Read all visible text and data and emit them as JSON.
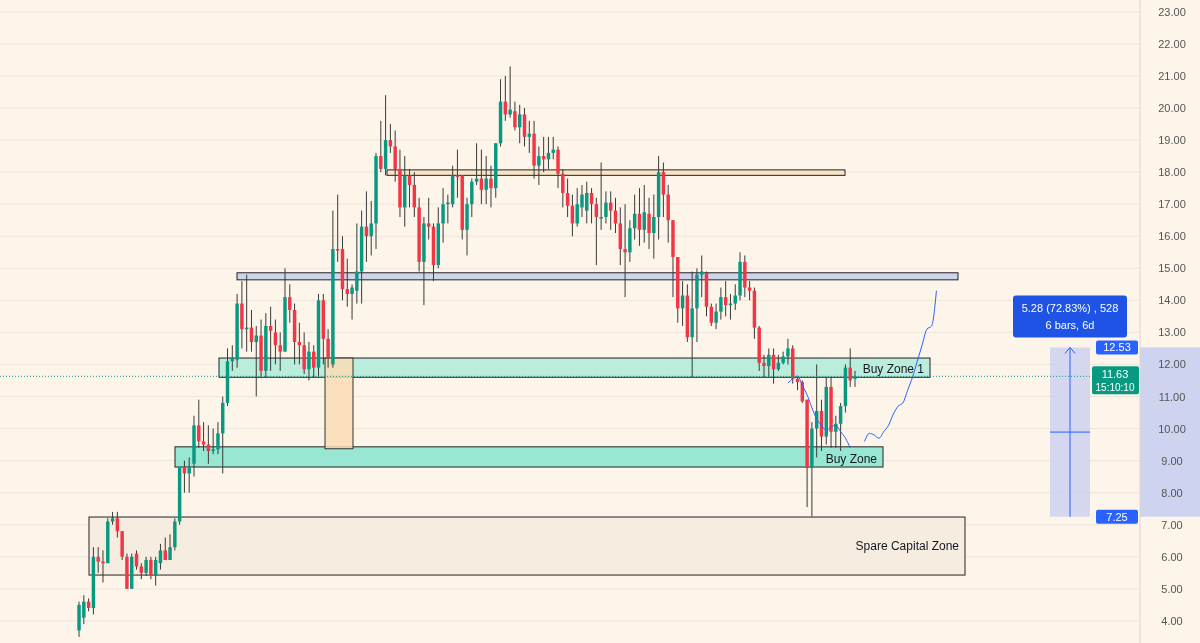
{
  "chart_data": {
    "type": "candlestick",
    "categories": [
      null,
      null,
      null,
      null,
      null,
      null,
      null,
      null,
      null,
      null,
      null,
      null,
      null,
      null,
      null,
      null,
      null,
      null,
      null,
      null,
      null,
      null,
      null,
      null,
      null,
      null,
      null,
      null,
      null,
      null,
      null,
      null,
      null,
      null,
      null,
      null,
      null,
      null,
      null,
      null,
      null,
      null,
      null,
      null,
      null,
      null,
      null,
      null,
      null,
      null,
      null,
      null,
      null,
      null,
      null,
      null,
      null,
      null,
      null,
      null,
      null,
      null,
      null,
      null,
      null,
      null,
      null,
      null,
      null,
      null,
      null,
      null,
      null,
      null,
      null,
      null,
      null,
      null,
      null,
      null,
      null,
      null,
      null,
      null,
      null,
      null,
      null,
      null,
      null,
      null,
      null,
      null,
      null,
      null,
      null,
      null,
      null,
      null,
      null,
      null,
      null,
      null,
      null,
      null,
      null,
      null,
      null,
      null,
      null,
      null,
      null,
      null,
      null,
      null,
      null,
      null,
      null,
      null,
      null,
      null,
      null,
      null,
      null,
      null,
      null,
      null,
      null,
      null,
      null,
      null,
      null,
      null,
      null,
      null,
      null,
      null,
      null,
      null,
      null,
      null,
      null,
      null,
      null,
      null,
      null,
      null,
      null,
      null,
      null,
      null,
      null,
      null,
      null,
      null,
      null,
      null,
      null,
      null,
      null,
      null,
      null,
      null,
      null,
      null,
      null,
      null,
      null,
      null,
      null,
      null,
      null,
      null,
      null,
      null,
      null,
      null,
      null,
      null,
      null,
      null,
      null,
      null,
      null,
      null,
      null,
      null,
      null,
      null,
      null,
      null,
      null,
      null,
      null,
      null,
      null,
      null,
      null,
      null,
      null,
      null,
      null,
      null,
      null,
      null,
      null,
      null,
      null,
      null,
      null,
      null,
      null,
      null,
      null,
      null,
      null,
      null,
      null,
      null,
      null,
      null,
      null,
      null,
      null,
      null,
      null,
      null,
      null,
      null,
      null,
      null,
      null,
      null,
      null,
      null,
      null,
      null,
      null,
      null
    ],
    "ohlc": [
      null,
      null,
      null,
      null,
      null,
      null,
      null,
      null,
      null,
      null,
      null,
      null,
      null,
      null,
      null,
      null,
      [
        3.7,
        4.6,
        3.5,
        4.5
      ],
      [
        4.1,
        4.8,
        3.9,
        4.6
      ],
      [
        4.6,
        4.7,
        4.3,
        4.4
      ],
      [
        4.4,
        6.3,
        4.2,
        6.0
      ],
      [
        6.0,
        6.3,
        5.5,
        5.85
      ],
      [
        5.85,
        6.2,
        5.2,
        5.8
      ],
      [
        5.8,
        7.2,
        5.8,
        7.1
      ],
      [
        7.1,
        7.4,
        7.0,
        7.2
      ],
      [
        7.2,
        7.4,
        6.6,
        6.8
      ],
      [
        6.8,
        6.8,
        5.9,
        6.0
      ],
      [
        6.0,
        6.1,
        5.0,
        5.0
      ],
      [
        5.0,
        6.1,
        5.0,
        6.0
      ],
      [
        6.1,
        6.2,
        5.6,
        5.7
      ],
      [
        5.7,
        5.8,
        5.3,
        5.5
      ],
      [
        5.5,
        6.0,
        5.4,
        5.9
      ],
      [
        5.9,
        6.0,
        5.3,
        5.4
      ],
      [
        5.4,
        6.0,
        5.1,
        5.9
      ],
      [
        5.8,
        6.4,
        5.6,
        6.2
      ],
      [
        6.2,
        6.6,
        5.9,
        5.9
      ],
      [
        5.9,
        6.7,
        5.9,
        6.3
      ],
      [
        6.3,
        7.2,
        6.2,
        7.1
      ],
      [
        7.1,
        8.8,
        7.0,
        8.8
      ],
      [
        8.8,
        9.0,
        8.0,
        8.6
      ],
      [
        8.6,
        9.1,
        8.0,
        8.8
      ],
      [
        8.9,
        10.4,
        8.5,
        10.1
      ],
      [
        10.1,
        10.9,
        9.4,
        9.6
      ],
      [
        9.6,
        10.2,
        9.3,
        9.5
      ],
      [
        9.5,
        10.1,
        8.9,
        9.3
      ],
      [
        9.3,
        10.0,
        9.2,
        9.35
      ],
      [
        9.35,
        10.2,
        9.2,
        9.85
      ],
      [
        9.85,
        11.0,
        8.6,
        10.8
      ],
      [
        10.8,
        12.5,
        10.7,
        12.1
      ],
      [
        12.1,
        12.6,
        11.8,
        12.2
      ],
      [
        12.15,
        14.2,
        11.9,
        13.9
      ],
      [
        13.9,
        14.6,
        12.5,
        13.1
      ],
      [
        13.1,
        14.8,
        12.4,
        13.15
      ],
      [
        13.15,
        13.7,
        12.4,
        12.7
      ],
      [
        12.7,
        13.2,
        11.0,
        12.9
      ],
      [
        12.9,
        13.4,
        11.6,
        11.8
      ],
      [
        11.8,
        13.6,
        11.6,
        13.2
      ],
      [
        13.2,
        13.8,
        11.8,
        13.05
      ],
      [
        13.0,
        13.4,
        12.0,
        12.6
      ],
      [
        12.6,
        13.0,
        11.8,
        12.4
      ],
      [
        12.4,
        15.0,
        12.4,
        14.1
      ],
      [
        14.1,
        14.5,
        13.3,
        13.7
      ],
      [
        13.7,
        13.9,
        12.0,
        12.7
      ],
      [
        12.7,
        13.3,
        12.0,
        12.6
      ],
      [
        12.6,
        13.0,
        11.7,
        11.85
      ],
      [
        11.85,
        12.7,
        11.5,
        12.4
      ],
      [
        12.4,
        12.6,
        11.6,
        11.9
      ],
      [
        11.9,
        14.2,
        11.6,
        14.0
      ],
      [
        14.0,
        14.2,
        12.0,
        12.8
      ],
      [
        12.8,
        13.1,
        11.9,
        12.2
      ],
      [
        12.0,
        16.8,
        11.9,
        15.6
      ],
      [
        15.6,
        17.3,
        15.2,
        15.55
      ],
      [
        15.6,
        16.0,
        14.0,
        14.35
      ],
      [
        14.35,
        15.3,
        13.8,
        14.2
      ],
      [
        14.2,
        14.5,
        13.4,
        14.4
      ],
      [
        14.3,
        16.4,
        13.9,
        14.9
      ],
      [
        14.9,
        16.8,
        13.9,
        16.3
      ],
      [
        16.3,
        17.4,
        15.2,
        16.0
      ],
      [
        16.0,
        17.1,
        15.4,
        16.4
      ],
      [
        16.4,
        18.6,
        15.6,
        18.5
      ],
      [
        18.5,
        19.6,
        18.0,
        18.1
      ],
      [
        18.1,
        20.4,
        17.9,
        19.0
      ],
      [
        19.0,
        19.5,
        18.6,
        18.8
      ],
      [
        18.8,
        19.3,
        17.7,
        18.1
      ],
      [
        18.1,
        18.7,
        16.6,
        16.9
      ],
      [
        16.9,
        18.5,
        16.3,
        17.9
      ],
      [
        17.9,
        18.1,
        16.9,
        17.6
      ],
      [
        17.6,
        18.0,
        16.6,
        16.9
      ],
      [
        16.9,
        17.2,
        14.9,
        15.2
      ],
      [
        15.2,
        16.6,
        13.85,
        16.4
      ],
      [
        16.4,
        17.2,
        15.9,
        16.3
      ],
      [
        16.3,
        16.4,
        14.6,
        15.1
      ],
      [
        15.1,
        16.9,
        15.0,
        16.4
      ],
      [
        16.4,
        17.5,
        15.8,
        17.0
      ],
      [
        17.0,
        17.3,
        16.4,
        17.05
      ],
      [
        17.0,
        18.2,
        16.9,
        17.9
      ],
      [
        17.9,
        18.7,
        17.2,
        17.85
      ],
      [
        17.9,
        17.9,
        15.9,
        16.2
      ],
      [
        16.2,
        17.2,
        15.4,
        17.0
      ],
      [
        17.0,
        17.8,
        16.6,
        17.7
      ],
      [
        17.7,
        18.9,
        17.6,
        17.8
      ],
      [
        17.8,
        18.7,
        17.0,
        17.45
      ],
      [
        17.45,
        18.5,
        17.0,
        17.8
      ],
      [
        17.8,
        18.2,
        16.9,
        17.5
      ],
      [
        17.5,
        18.9,
        17.2,
        18.9
      ],
      [
        18.9,
        20.9,
        18.8,
        20.2
      ],
      [
        20.2,
        21.0,
        19.6,
        19.8
      ],
      [
        19.8,
        21.3,
        19.7,
        19.95
      ],
      [
        19.9,
        20.2,
        19.3,
        19.4
      ],
      [
        19.4,
        20.1,
        18.9,
        19.8
      ],
      [
        19.8,
        20.0,
        18.8,
        19.1
      ],
      [
        19.1,
        19.6,
        18.6,
        19.2
      ],
      [
        19.2,
        19.6,
        17.8,
        18.2
      ],
      [
        18.2,
        18.8,
        17.6,
        18.5
      ],
      [
        18.5,
        19.1,
        18.0,
        18.4
      ],
      [
        18.4,
        19.1,
        18.1,
        18.6
      ],
      [
        18.6,
        19.1,
        18.4,
        18.7
      ],
      [
        18.7,
        18.8,
        17.5,
        17.95
      ],
      [
        17.95,
        18.1,
        16.9,
        17.35
      ],
      [
        17.35,
        17.8,
        16.6,
        16.95
      ],
      [
        16.95,
        17.3,
        16.0,
        16.4
      ],
      [
        16.4,
        17.5,
        16.3,
        17.0
      ],
      [
        16.9,
        17.6,
        16.6,
        17.3
      ],
      [
        16.8,
        17.7,
        16.4,
        17.35
      ],
      [
        17.35,
        17.5,
        16.4,
        17.0
      ],
      [
        17.0,
        17.2,
        15.1,
        16.6
      ],
      [
        16.55,
        18.3,
        16.2,
        16.6
      ],
      [
        16.6,
        17.4,
        16.4,
        17.05
      ],
      [
        17.05,
        17.4,
        16.2,
        16.8
      ],
      [
        16.8,
        17.2,
        16.1,
        16.4
      ],
      [
        16.4,
        16.9,
        15.1,
        15.6
      ],
      [
        15.6,
        17.0,
        14.1,
        15.5
      ],
      [
        15.5,
        16.5,
        15.2,
        16.25
      ],
      [
        16.25,
        17.3,
        15.9,
        16.7
      ],
      [
        16.7,
        17.5,
        15.7,
        16.2
      ],
      [
        16.2,
        17.6,
        15.8,
        16.75
      ],
      [
        16.7,
        17.2,
        15.6,
        16.1
      ],
      [
        16.1,
        17.3,
        15.3,
        16.6
      ],
      [
        16.6,
        18.5,
        15.9,
        18.0
      ],
      [
        18.0,
        18.3,
        16.6,
        17.3
      ],
      [
        17.3,
        17.6,
        15.8,
        16.5
      ],
      [
        16.5,
        16.5,
        14.1,
        15.35
      ],
      [
        15.35,
        15.35,
        13.3,
        13.75
      ],
      [
        13.75,
        14.6,
        13.2,
        14.15
      ],
      [
        14.15,
        14.5,
        12.7,
        12.85
      ],
      [
        12.85,
        14.9,
        11.6,
        13.75
      ],
      [
        13.75,
        15.0,
        12.7,
        14.8
      ],
      [
        14.8,
        15.4,
        14.1,
        14.9
      ],
      [
        14.85,
        14.9,
        13.5,
        13.8
      ],
      [
        13.8,
        13.9,
        13.2,
        13.3
      ],
      [
        13.3,
        13.9,
        13.1,
        13.65
      ],
      [
        13.65,
        14.4,
        13.4,
        14.1
      ],
      [
        14.1,
        14.6,
        13.5,
        13.85
      ],
      [
        13.85,
        14.2,
        13.4,
        13.9
      ],
      [
        13.9,
        14.5,
        13.7,
        14.15
      ],
      [
        14.15,
        15.5,
        14.0,
        15.2
      ],
      [
        15.2,
        15.4,
        14.1,
        14.4
      ],
      [
        14.4,
        14.6,
        14.0,
        14.3
      ],
      [
        14.3,
        14.4,
        12.8,
        13.15
      ],
      [
        13.15,
        13.2,
        11.8,
        12.05
      ],
      [
        12.05,
        12.3,
        11.6,
        11.95
      ],
      [
        11.95,
        12.5,
        11.6,
        12.3
      ],
      [
        12.3,
        12.5,
        11.4,
        11.85
      ],
      [
        11.85,
        12.3,
        11.8,
        12.05
      ],
      [
        12.05,
        12.4,
        12.0,
        12.25
      ],
      [
        12.25,
        12.8,
        12.0,
        12.5
      ],
      [
        12.5,
        12.6,
        11.4,
        11.55
      ],
      [
        11.55,
        11.6,
        11.2,
        11.45
      ],
      [
        11.45,
        11.5,
        10.8,
        10.85
      ],
      [
        10.9,
        10.9,
        7.55,
        8.8
      ],
      [
        8.8,
        10.2,
        7.25,
        10.0
      ],
      [
        10.0,
        12.0,
        9.1,
        10.55
      ],
      [
        10.55,
        10.9,
        9.3,
        9.75
      ],
      [
        9.75,
        11.6,
        9.5,
        11.3
      ],
      [
        11.3,
        11.6,
        9.4,
        9.9
      ],
      [
        9.9,
        10.4,
        9.4,
        10.15
      ],
      [
        10.15,
        10.8,
        9.3,
        10.7
      ],
      [
        10.7,
        12.0,
        10.5,
        11.9
      ],
      [
        11.9,
        12.5,
        11.3,
        11.5
      ],
      [
        11.55,
        11.8,
        11.3,
        11.63
      ],
      null,
      null,
      null,
      null,
      null,
      null,
      null,
      null,
      null,
      null,
      null,
      null,
      null,
      null,
      null,
      null,
      null,
      null,
      null,
      null,
      null,
      null,
      null,
      null,
      null,
      null,
      null,
      null,
      null,
      null,
      null,
      null,
      null,
      null,
      null,
      null,
      null,
      null,
      null,
      null,
      null,
      null,
      null,
      null,
      null,
      null,
      null,
      null,
      null,
      null,
      null,
      null,
      null,
      null,
      null,
      null,
      null,
      null,
      null
    ],
    "series": [
      {
        "type": "line",
        "color": "#2962ff",
        "values": [
          null,
          null,
          null,
          null,
          null,
          null,
          null,
          null,
          null,
          null,
          null,
          null,
          null,
          null,
          null,
          null,
          null,
          null,
          null,
          null,
          null,
          null,
          null,
          null,
          null,
          null,
          null,
          null,
          null,
          null,
          null,
          null,
          null,
          null,
          null,
          null,
          null,
          null,
          null,
          null,
          null,
          null,
          null,
          null,
          null,
          null,
          null,
          null,
          null,
          null,
          null,
          null,
          null,
          null,
          null,
          null,
          null,
          null,
          null,
          null,
          null,
          null,
          null,
          null,
          null,
          null,
          null,
          null,
          null,
          null,
          null,
          null,
          null,
          null,
          null,
          null,
          null,
          null,
          null,
          null,
          null,
          null,
          null,
          null,
          null,
          null,
          null,
          null,
          null,
          null,
          null,
          null,
          null,
          null,
          null,
          null,
          null,
          null,
          null,
          null,
          null,
          null,
          null,
          null,
          null,
          null,
          null,
          null,
          null,
          null,
          null,
          null,
          null,
          null,
          null,
          null,
          null,
          null,
          null,
          null,
          null,
          null,
          null,
          null,
          null,
          null,
          null,
          null,
          null,
          null,
          null,
          null,
          null,
          null,
          null,
          null,
          null,
          null,
          null,
          null,
          null,
          null,
          null,
          null,
          null,
          null,
          null,
          null,
          null,
          null,
          null,
          null,
          null,
          null,
          null,
          null,
          null,
          null,
          null,
          null,
          null,
          null,
          null,
          null,
          11.42,
          11.55,
          11.64,
          11.35,
          11.05,
          10.65,
          10.3,
          10.1,
          9.95,
          10.05,
          10.1,
          9.9,
          9.7,
          9.4,
          null,
          null,
          9.6,
          9.85,
          9.8,
          9.7,
          9.9,
          10.1,
          10.45,
          10.7,
          10.8,
          11.2,
          11.6,
          12.1,
          12.6,
          13.1,
          13.2,
          14.3,
          null,
          null,
          null,
          null,
          null,
          null,
          null,
          null,
          null,
          null,
          null,
          null,
          null,
          null,
          null,
          null,
          null,
          null,
          null,
          null,
          null,
          null,
          null,
          null,
          null,
          null,
          null,
          null,
          null,
          null,
          null,
          null,
          null,
          null,
          null,
          null,
          null,
          null,
          null,
          null,
          null,
          null
        ]
      }
    ],
    "ylim": [
      3.31,
      23.37
    ],
    "yticks": [
      {
        "value": 4,
        "label": "4.00"
      },
      {
        "value": 5,
        "label": "5.00"
      },
      {
        "value": 6,
        "label": "6.00"
      },
      {
        "value": 7,
        "label": "7.00"
      },
      {
        "value": 8,
        "label": "8.00"
      },
      {
        "value": 9,
        "label": "9.00"
      },
      {
        "value": 10,
        "label": "10.00"
      },
      {
        "value": 11,
        "label": "11.00"
      },
      {
        "value": 12,
        "label": "12.00"
      },
      {
        "value": 13,
        "label": "13.00"
      },
      {
        "value": 14,
        "label": "14.00"
      },
      {
        "value": 15,
        "label": "15.00"
      },
      {
        "value": 16,
        "label": "16.00"
      },
      {
        "value": 17,
        "label": "17.00"
      },
      {
        "value": 18,
        "label": "18.00"
      },
      {
        "value": 19,
        "label": "19.00"
      },
      {
        "value": 20,
        "label": "20.00"
      },
      {
        "value": 21,
        "label": "21.00"
      },
      {
        "value": 22,
        "label": "22.00"
      },
      {
        "value": 23,
        "label": "23.00"
      }
    ],
    "grid": "y",
    "bands": [
      {
        "axis": "y",
        "from": 5.43,
        "to": 7.24,
        "label": "Spare Capital Zone",
        "color": "#f6ebdf"
      },
      {
        "axis": "y",
        "from": 8.8,
        "to": 9.43,
        "label": "Buy Zone",
        "color": "#8de6d0"
      },
      {
        "axis": "y",
        "from": 11.6,
        "to": 12.2,
        "label": "Buy Zone 1",
        "color": "#b4ecdc"
      },
      {
        "axis": "y",
        "from": 14.64,
        "to": 14.86,
        "color": "#c9d0ec"
      },
      {
        "axis": "y",
        "from": 17.9,
        "to": 18.07,
        "color": "#f8e3c2"
      }
    ],
    "ref_lines": [
      {
        "axis": "y",
        "value": 11.63,
        "label": "11.63",
        "color": "#089981",
        "line_style": "dotted"
      }
    ],
    "annotations": [
      "5.28 (72.83%) , 528",
      "6 bars, 6d",
      "15:10:10",
      "12.53",
      "7.25"
    ]
  }
}
